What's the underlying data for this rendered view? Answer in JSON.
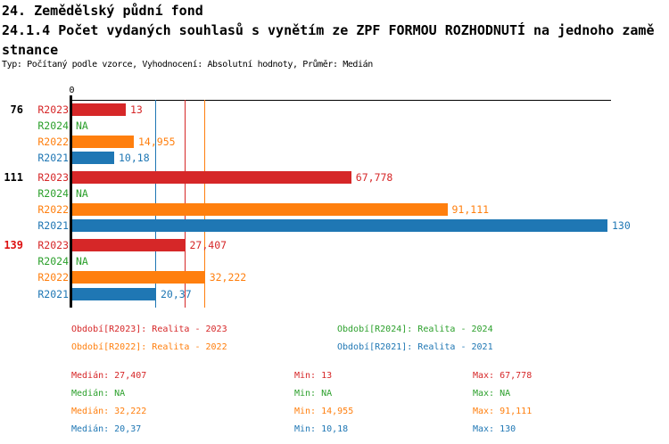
{
  "header": {
    "title_line1": "24. Zemědělský půdní fond",
    "title_line2": "24.1.4 Počet vydaných souhlasů s vynětím ze ZPF FORMOU ROZHODNUTÍ na jednoho zamě",
    "title_line3": "stnance",
    "subtitle": "Typ: Počítaný podle vzorce, Vyhodnocení: Absolutní hodnoty, Průměr: Medián"
  },
  "chart_data": {
    "type": "bar",
    "orientation": "horizontal",
    "title": "24.1.4 Počet vydaných souhlasů s vynětím ze ZPF FORMOU ROZHODNUTÍ na jednoho zaměstnance",
    "x_axis": {
      "tick_label": "0",
      "min": 0,
      "max": 130,
      "grid": false
    },
    "series_colors": {
      "R2023": "#d62728",
      "R2024": "#2ca02c",
      "R2022": "#ff7f0e",
      "R2021": "#1f77b4"
    },
    "groups": [
      {
        "label": "76",
        "label_color": "#000000",
        "bars": [
          {
            "series": "R2023",
            "value": 13,
            "display": "13"
          },
          {
            "series": "R2024",
            "value": null,
            "display": "NA"
          },
          {
            "series": "R2022",
            "value": 14.955,
            "display": "14,955"
          },
          {
            "series": "R2021",
            "value": 10.18,
            "display": "10,18"
          }
        ]
      },
      {
        "label": "111",
        "label_color": "#000000",
        "bars": [
          {
            "series": "R2023",
            "value": 67.778,
            "display": "67,778"
          },
          {
            "series": "R2024",
            "value": null,
            "display": "NA"
          },
          {
            "series": "R2022",
            "value": 91.111,
            "display": "91,111"
          },
          {
            "series": "R2021",
            "value": 130,
            "display": "130"
          }
        ]
      },
      {
        "label": "139",
        "label_color": "#dd1111",
        "bars": [
          {
            "series": "R2023",
            "value": 27.407,
            "display": "27,407"
          },
          {
            "series": "R2024",
            "value": null,
            "display": "NA"
          },
          {
            "series": "R2022",
            "value": 32.222,
            "display": "32,222"
          },
          {
            "series": "R2021",
            "value": 20.37,
            "display": "20,37"
          }
        ]
      }
    ],
    "median_lines": [
      {
        "series": "R2021",
        "value": 20.37
      },
      {
        "series": "R2023",
        "value": 27.407
      },
      {
        "series": "R2022",
        "value": 32.222
      }
    ]
  },
  "legend": {
    "items": [
      {
        "label": "Období[R2023]: Realita - 2023",
        "color": "#d62728"
      },
      {
        "label": "Období[R2024]: Realita - 2024",
        "color": "#2ca02c"
      },
      {
        "label": "Období[R2022]: Realita - 2022",
        "color": "#ff7f0e"
      },
      {
        "label": "Období[R2021]: Realita - 2021",
        "color": "#1f77b4"
      }
    ]
  },
  "stats": {
    "rows": [
      {
        "color": "#d62728",
        "median": "Medián: 27,407",
        "min": "Min: 13",
        "max": "Max: 67,778"
      },
      {
        "color": "#2ca02c",
        "median": "Medián: NA",
        "min": "Min: NA",
        "max": "Max: NA"
      },
      {
        "color": "#ff7f0e",
        "median": "Medián: 32,222",
        "min": "Min: 14,955",
        "max": "Max: 91,111"
      },
      {
        "color": "#1f77b4",
        "median": "Medián: 20,37",
        "min": "Min: 10,18",
        "max": "Max: 130"
      }
    ]
  }
}
